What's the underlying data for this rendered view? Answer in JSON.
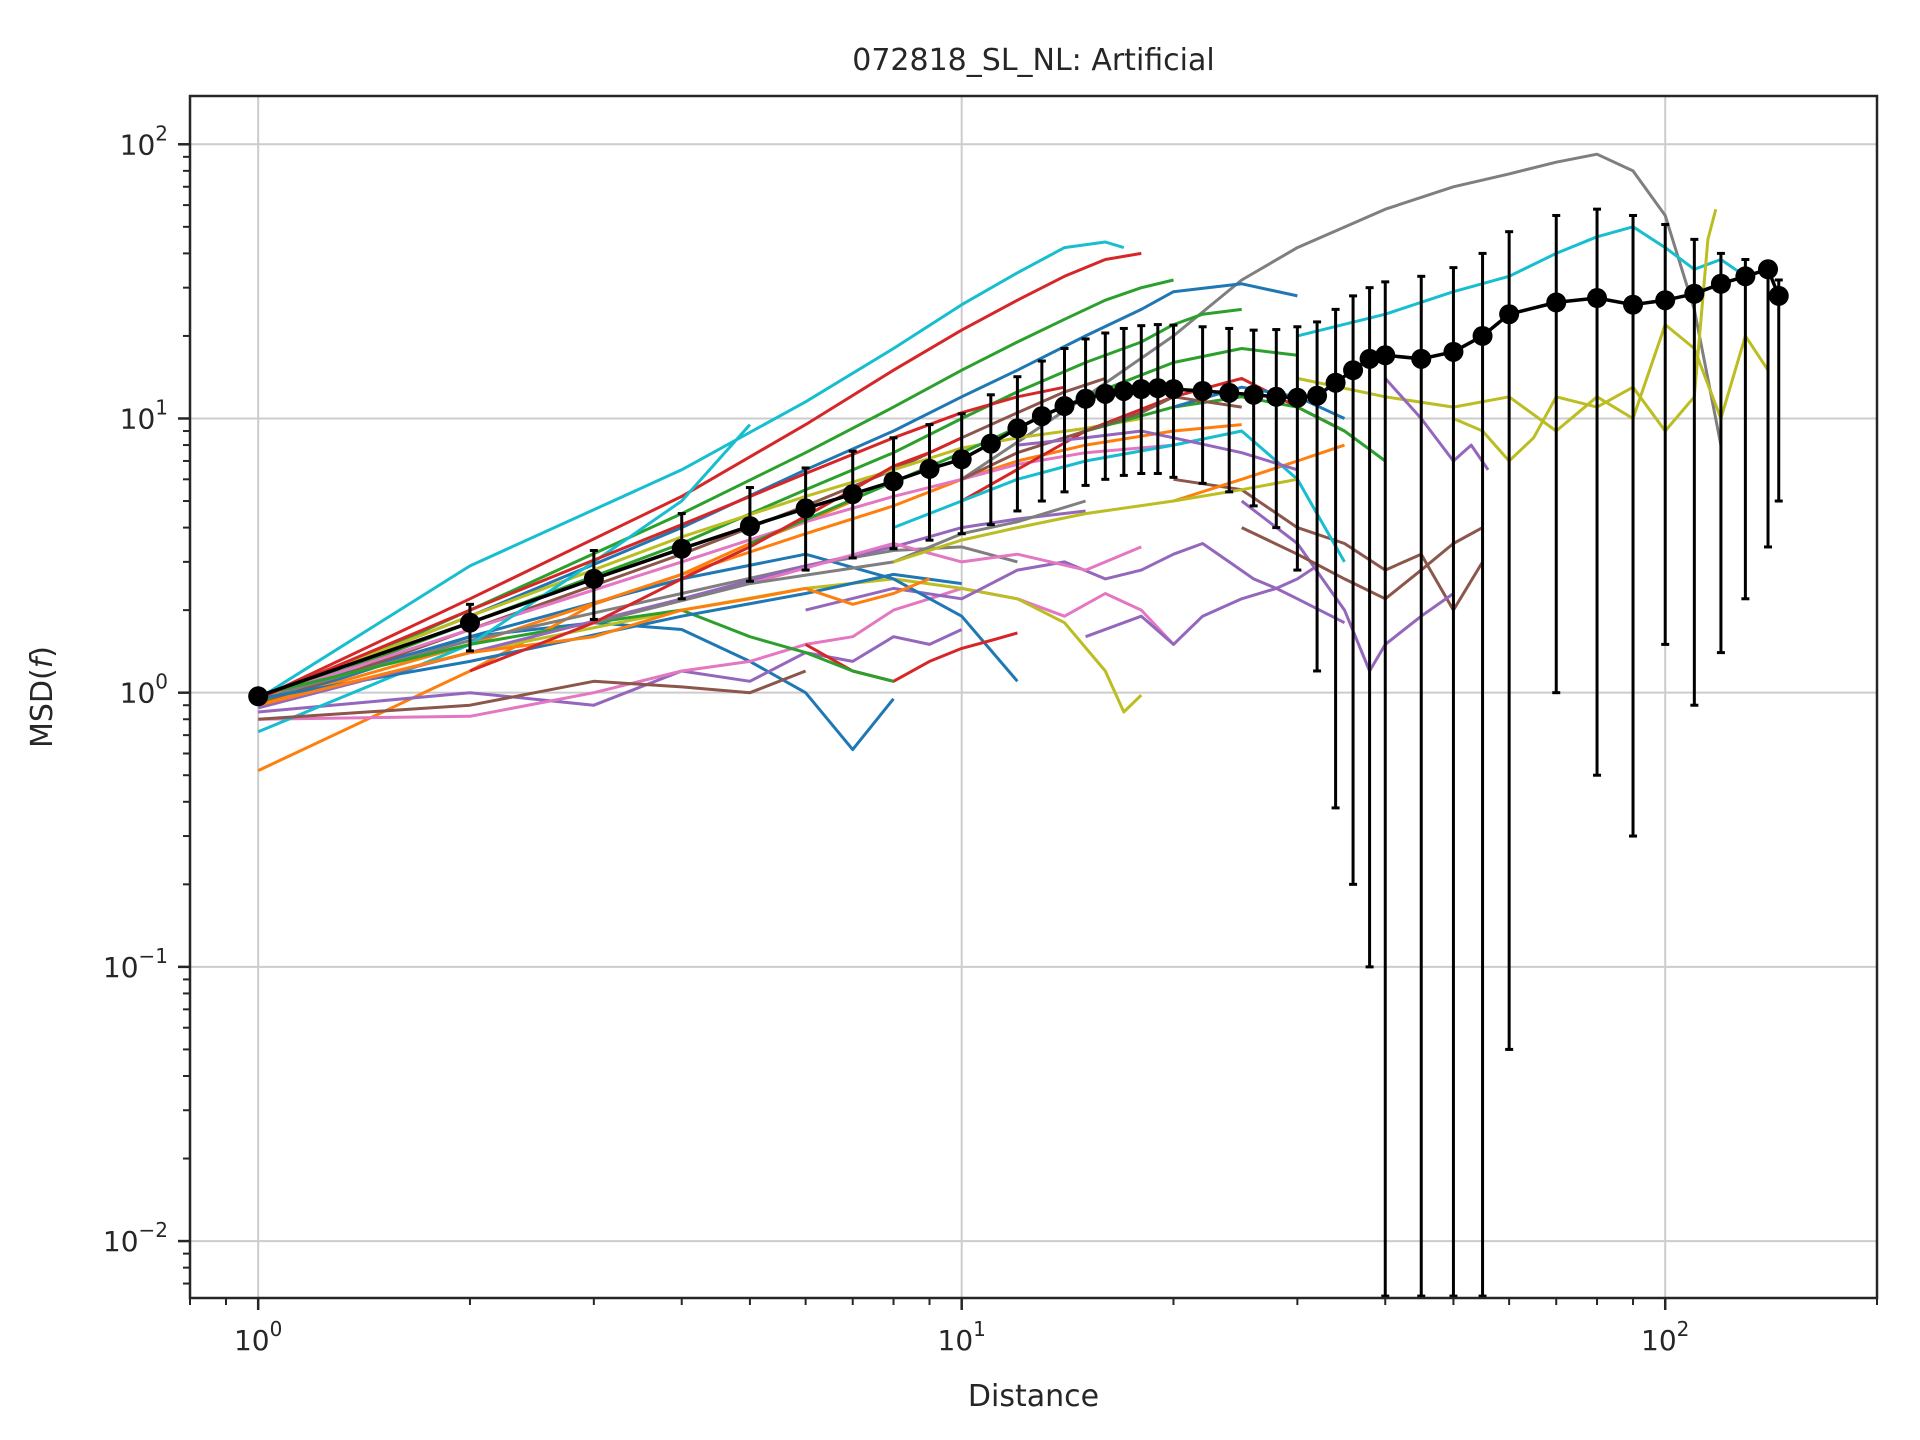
{
  "chart_data": {
    "type": "line",
    "title": "072818_SL_NL: Artificial",
    "xlabel": "Distance",
    "ylabel": "MSD(f)",
    "xscale": "log",
    "yscale": "log",
    "xlim": [
      0.8,
      200
    ],
    "ylim": [
      0.0062,
      150
    ],
    "grid": true,
    "x_ticks": [
      {
        "base": "10",
        "exp": "0",
        "value": 1
      },
      {
        "base": "10",
        "exp": "1",
        "value": 10
      },
      {
        "base": "10",
        "exp": "2",
        "value": 100
      }
    ],
    "y_ticks": [
      {
        "base": "10",
        "exp": "−2",
        "value": 0.01
      },
      {
        "base": "10",
        "exp": "−1",
        "value": 0.1
      },
      {
        "base": "10",
        "exp": "0",
        "value": 1
      },
      {
        "base": "10",
        "exp": "1",
        "value": 10
      },
      {
        "base": "10",
        "exp": "2",
        "value": 100
      }
    ],
    "palette": [
      "#1f77b4",
      "#ff7f0e",
      "#2ca02c",
      "#d62728",
      "#9467bd",
      "#8c564b",
      "#e377c2",
      "#7f7f7f",
      "#bcbd22",
      "#17becf"
    ],
    "mean_series": {
      "color": "#000000",
      "x": [
        1,
        2,
        3,
        4,
        5,
        6,
        7,
        8,
        9,
        10,
        11,
        12,
        13,
        14,
        15,
        16,
        17,
        18,
        19,
        20,
        22,
        24,
        26,
        28,
        30,
        32,
        34,
        36,
        38,
        40,
        45,
        50,
        55,
        60,
        70,
        80,
        90,
        100,
        110,
        120,
        130,
        140,
        145
      ],
      "y": [
        0.97,
        1.8,
        2.6,
        3.35,
        4.05,
        4.7,
        5.3,
        5.9,
        6.55,
        7.1,
        8.1,
        9.2,
        10.2,
        11.1,
        11.8,
        12.3,
        12.6,
        12.8,
        12.9,
        12.8,
        12.6,
        12.4,
        12.2,
        12.0,
        11.9,
        12.1,
        13.5,
        15.0,
        16.5,
        17.0,
        16.5,
        17.5,
        20.0,
        24.0,
        26.5,
        27.5,
        26.0,
        27.0,
        28.5,
        31.0,
        33.0,
        35.0,
        28.0
      ],
      "err_low": [
        0.95,
        1.42,
        1.85,
        2.2,
        2.55,
        2.8,
        3.1,
        3.35,
        3.6,
        3.8,
        4.1,
        4.6,
        5.0,
        5.4,
        5.7,
        6.0,
        6.2,
        6.3,
        6.3,
        6.1,
        5.8,
        5.4,
        4.8,
        4.0,
        2.8,
        1.2,
        0.38,
        0.2,
        0.1,
        0.0063,
        0.0063,
        0.0063,
        0.0063,
        0.05,
        1.0,
        0.5,
        0.3,
        1.5,
        0.9,
        1.4,
        2.2,
        3.4,
        5.0
      ],
      "err_high": [
        1.0,
        2.1,
        3.3,
        4.5,
        5.6,
        6.6,
        7.6,
        8.5,
        9.5,
        10.4,
        12.2,
        14.2,
        16.2,
        18.0,
        19.5,
        20.5,
        21.3,
        21.8,
        22.0,
        21.9,
        21.6,
        21.3,
        21.0,
        21.1,
        21.6,
        22.5,
        25.0,
        28.0,
        30.0,
        31.5,
        33.0,
        35.5,
        40.0,
        48.0,
        55.0,
        58.0,
        55.0,
        51.0,
        45.0,
        40.0,
        38.0,
        37.0,
        32.0
      ]
    },
    "series": [
      {
        "color": "#17becf",
        "x": [
          1,
          2,
          4,
          6,
          8,
          10,
          12,
          14,
          16,
          17
        ],
        "y": [
          0.95,
          2.9,
          6.5,
          11.5,
          18.0,
          26.0,
          34.0,
          42.0,
          44.0,
          42.0
        ]
      },
      {
        "color": "#d62728",
        "x": [
          1,
          2,
          4,
          6,
          8,
          10,
          12,
          14,
          16,
          18
        ],
        "y": [
          0.95,
          2.2,
          5.2,
          9.5,
          15.0,
          21.0,
          27.0,
          33.0,
          38.0,
          40.0
        ]
      },
      {
        "color": "#2ca02c",
        "x": [
          1,
          2,
          4,
          6,
          8,
          10,
          12,
          14,
          16,
          18,
          20
        ],
        "y": [
          0.9,
          2.0,
          4.5,
          7.5,
          11.0,
          15.0,
          19.0,
          23.0,
          27.0,
          30.0,
          32.0
        ]
      },
      {
        "color": "#7f7f7f",
        "x": [
          10,
          15,
          20,
          25,
          30,
          40,
          50,
          60,
          70,
          80,
          90,
          100,
          110,
          120
        ],
        "y": [
          6.0,
          12.0,
          20.0,
          32.0,
          42.0,
          58.0,
          70.0,
          78.0,
          86.0,
          92.0,
          80.0,
          55.0,
          25.0,
          8.0
        ]
      },
      {
        "color": "#17becf",
        "x": [
          30,
          40,
          50,
          60,
          70,
          80,
          90,
          100,
          110,
          120,
          130
        ],
        "y": [
          20.0,
          24.0,
          29.0,
          33.0,
          40.0,
          46.0,
          50.0,
          42.0,
          35.0,
          38.0,
          33.0
        ]
      },
      {
        "color": "#bcbd22",
        "x": [
          30,
          40,
          50,
          60,
          70,
          80,
          90,
          100,
          110,
          120,
          130,
          140
        ],
        "y": [
          14.0,
          12.0,
          11.0,
          12.0,
          9.0,
          12.0,
          10.0,
          22.0,
          18.0,
          10.0,
          20.0,
          15.0
        ]
      },
      {
        "color": "#bcbd22",
        "x": [
          50,
          55,
          60,
          65,
          70,
          80,
          90,
          100,
          110,
          115,
          118
        ],
        "y": [
          10.0,
          9.0,
          7.0,
          8.5,
          12.0,
          11.0,
          13.0,
          9.0,
          12.0,
          45.0,
          58.0
        ]
      },
      {
        "color": "#1f77b4",
        "x": [
          1,
          2,
          3,
          4,
          5,
          6,
          7,
          8
        ],
        "y": [
          0.9,
          1.6,
          1.8,
          1.7,
          1.3,
          1.0,
          0.62,
          0.95
        ]
      },
      {
        "color": "#ff7f0e",
        "x": [
          1,
          2,
          3,
          4,
          5,
          6,
          7
        ],
        "y": [
          0.52,
          1.2,
          2.1,
          2.7,
          3.5,
          4.2,
          5.0
        ]
      },
      {
        "color": "#9467bd",
        "x": [
          1,
          2,
          3,
          4,
          5,
          6,
          7,
          8,
          9,
          10
        ],
        "y": [
          0.85,
          1.0,
          0.9,
          1.2,
          1.1,
          1.4,
          1.3,
          1.6,
          1.5,
          1.7
        ]
      },
      {
        "color": "#e377c2",
        "x": [
          1,
          2,
          3,
          4,
          5,
          6,
          7,
          8,
          9,
          10,
          12,
          14,
          16,
          18,
          20
        ],
        "y": [
          0.8,
          0.82,
          1.0,
          1.2,
          1.3,
          1.5,
          1.6,
          2.0,
          2.2,
          2.4,
          2.2,
          1.9,
          2.3,
          2.0,
          1.5
        ]
      },
      {
        "color": "#bcbd22",
        "x": [
          1,
          2,
          4,
          6,
          8,
          10,
          12,
          14,
          16,
          17,
          18
        ],
        "y": [
          0.9,
          1.4,
          2.0,
          2.4,
          2.6,
          2.4,
          2.2,
          1.8,
          1.2,
          0.85,
          0.98
        ]
      },
      {
        "color": "#9467bd",
        "x": [
          6,
          8,
          10,
          12,
          14,
          16,
          18,
          20,
          22,
          24,
          26,
          28,
          30,
          32
        ],
        "y": [
          2.0,
          2.4,
          2.2,
          2.8,
          3.0,
          2.6,
          2.8,
          3.2,
          3.5,
          3.0,
          2.6,
          2.4,
          2.6,
          2.9
        ]
      },
      {
        "color": "#8c564b",
        "x": [
          20,
          25,
          30,
          35,
          40,
          45,
          50,
          55
        ],
        "y": [
          6.0,
          5.5,
          4.0,
          3.5,
          2.8,
          3.2,
          2.0,
          3.0
        ]
      },
      {
        "color": "#9467bd",
        "x": [
          25,
          30,
          35,
          38,
          40,
          45,
          50
        ],
        "y": [
          5.0,
          3.5,
          2.0,
          1.2,
          1.5,
          1.9,
          2.3
        ]
      },
      {
        "color": "#9467bd",
        "x": [
          40,
          45,
          50,
          53,
          56
        ],
        "y": [
          14.0,
          10.0,
          7.0,
          8.0,
          6.5
        ]
      },
      {
        "color": "#1f77b4",
        "x": [
          1,
          2,
          4,
          6,
          8,
          10,
          12
        ],
        "y": [
          0.95,
          1.6,
          2.6,
          3.2,
          2.6,
          1.9,
          1.1
        ]
      },
      {
        "color": "#d62728",
        "x": [
          6,
          7,
          8,
          9,
          10,
          11,
          12
        ],
        "y": [
          1.5,
          1.2,
          1.1,
          1.3,
          1.45,
          1.55,
          1.65
        ]
      },
      {
        "color": "#1f77b4",
        "x": [
          1,
          2,
          4,
          6,
          8,
          10,
          12,
          15,
          18,
          20,
          25,
          30
        ],
        "y": [
          0.95,
          1.9,
          4.0,
          6.5,
          9.0,
          12.0,
          15.0,
          20.0,
          25.0,
          29.0,
          31.0,
          28.0
        ]
      },
      {
        "color": "#2ca02c",
        "x": [
          1,
          2,
          4,
          6,
          8,
          10,
          12,
          15,
          18,
          20,
          22,
          25
        ],
        "y": [
          0.92,
          1.8,
          3.5,
          5.5,
          7.5,
          10.0,
          12.5,
          16.0,
          19.0,
          22.0,
          24.0,
          25.0
        ]
      },
      {
        "color": "#8c564b",
        "x": [
          1,
          2,
          4,
          6,
          8,
          10,
          12,
          14,
          16
        ],
        "y": [
          0.9,
          1.7,
          3.2,
          4.8,
          6.5,
          8.5,
          10.5,
          12.5,
          14.0
        ]
      },
      {
        "color": "#ff7f0e",
        "x": [
          1,
          2,
          4,
          6,
          8,
          10,
          12,
          15,
          20,
          25
        ],
        "y": [
          0.9,
          1.5,
          2.7,
          3.8,
          4.8,
          6.0,
          7.0,
          8.0,
          9.0,
          9.5
        ]
      },
      {
        "color": "#e377c2",
        "x": [
          1,
          2,
          4,
          6,
          8,
          10,
          12,
          15,
          20
        ],
        "y": [
          0.95,
          1.7,
          3.0,
          4.2,
          5.2,
          6.0,
          6.8,
          7.5,
          8.0
        ]
      },
      {
        "color": "#7f7f7f",
        "x": [
          1,
          2,
          4,
          6,
          8,
          10,
          12
        ],
        "y": [
          0.95,
          1.55,
          2.3,
          2.9,
          3.3,
          3.4,
          3.0
        ]
      },
      {
        "color": "#bcbd22",
        "x": [
          1,
          2,
          4,
          6,
          8,
          10,
          12,
          15,
          18
        ],
        "y": [
          0.95,
          1.9,
          3.7,
          5.2,
          6.5,
          7.8,
          8.5,
          9.2,
          10.0
        ]
      },
      {
        "color": "#17becf",
        "x": [
          1,
          2,
          3,
          4,
          5
        ],
        "y": [
          0.72,
          1.5,
          3.0,
          5.0,
          9.5
        ]
      },
      {
        "color": "#d62728",
        "x": [
          10,
          15,
          20,
          25,
          30,
          35
        ],
        "y": [
          5.0,
          9.0,
          12.0,
          14.0,
          11.0,
          9.0
        ]
      },
      {
        "color": "#2ca02c",
        "x": [
          1,
          2,
          3,
          4,
          5,
          6,
          7,
          8
        ],
        "y": [
          0.98,
          1.5,
          1.8,
          2.0,
          1.6,
          1.4,
          1.2,
          1.1
        ]
      },
      {
        "color": "#9467bd",
        "x": [
          15,
          18,
          20,
          22,
          25,
          28,
          30,
          35
        ],
        "y": [
          1.6,
          1.9,
          1.5,
          1.9,
          2.2,
          2.4,
          2.2,
          1.8
        ]
      },
      {
        "color": "#8c564b",
        "x": [
          1,
          2,
          3,
          4,
          5,
          6
        ],
        "y": [
          0.8,
          0.9,
          1.1,
          1.05,
          1.0,
          1.2
        ]
      },
      {
        "color": "#ff7f0e",
        "x": [
          20,
          25,
          30,
          35
        ],
        "y": [
          5.0,
          6.0,
          7.0,
          8.0
        ]
      },
      {
        "color": "#1f77b4",
        "x": [
          1,
          2,
          4,
          6,
          8,
          10
        ],
        "y": [
          0.95,
          1.3,
          1.9,
          2.3,
          2.7,
          2.5
        ]
      },
      {
        "color": "#2ca02c",
        "x": [
          5,
          10,
          15,
          20,
          25,
          30
        ],
        "y": [
          3.5,
          7.5,
          12.0,
          16.0,
          18.0,
          17.0
        ]
      },
      {
        "color": "#d62728",
        "x": [
          1,
          2,
          4,
          6,
          8,
          10,
          12,
          14
        ],
        "y": [
          0.95,
          2.0,
          4.1,
          6.3,
          8.5,
          10.5,
          12.0,
          13.0
        ]
      },
      {
        "color": "#17becf",
        "x": [
          8,
          10,
          12,
          15,
          20,
          25,
          30,
          35
        ],
        "y": [
          4.0,
          5.0,
          6.0,
          7.0,
          8.0,
          9.0,
          6.0,
          3.0
        ]
      },
      {
        "color": "#8c564b",
        "x": [
          25,
          30,
          35,
          40,
          45,
          50,
          55
        ],
        "y": [
          4.0,
          3.2,
          2.6,
          2.2,
          2.8,
          3.5,
          4.0
        ]
      },
      {
        "color": "#9467bd",
        "x": [
          1,
          2,
          4,
          6,
          8,
          10,
          12,
          15
        ],
        "y": [
          0.88,
          1.4,
          2.2,
          2.9,
          3.4,
          4.0,
          4.3,
          4.6
        ]
      },
      {
        "color": "#e377c2",
        "x": [
          5,
          8,
          10,
          12,
          15,
          18
        ],
        "y": [
          2.5,
          3.5,
          3.0,
          3.2,
          2.8,
          3.4
        ]
      },
      {
        "color": "#7f7f7f",
        "x": [
          3,
          5,
          8,
          10,
          12,
          15
        ],
        "y": [
          1.8,
          2.5,
          3.0,
          3.8,
          4.2,
          5.0
        ]
      },
      {
        "color": "#ff7f0e",
        "x": [
          1,
          2,
          3,
          4,
          5,
          6,
          7,
          8,
          9
        ],
        "y": [
          0.9,
          1.4,
          1.6,
          2.0,
          2.2,
          2.4,
          2.1,
          2.3,
          2.6
        ]
      },
      {
        "color": "#2ca02c",
        "x": [
          15,
          20,
          25,
          30,
          35,
          40
        ],
        "y": [
          9.0,
          11.0,
          12.0,
          11.0,
          9.0,
          7.0
        ]
      },
      {
        "color": "#bcbd22",
        "x": [
          8,
          10,
          12,
          15,
          20,
          25,
          30
        ],
        "y": [
          3.0,
          3.6,
          4.0,
          4.5,
          5.0,
          5.5,
          6.0
        ]
      },
      {
        "color": "#1f77b4",
        "x": [
          20,
          25,
          30,
          35
        ],
        "y": [
          11.0,
          13.0,
          12.0,
          10.0
        ]
      },
      {
        "color": "#d62728",
        "x": [
          2,
          3,
          4,
          5,
          6,
          7,
          8,
          9,
          10
        ],
        "y": [
          1.2,
          1.8,
          2.6,
          3.4,
          4.4,
          5.5,
          6.7,
          7.5,
          8.5
        ]
      },
      {
        "color": "#8c564b",
        "x": [
          10,
          12,
          15,
          18,
          20,
          25
        ],
        "y": [
          6.0,
          7.5,
          9.0,
          10.5,
          12.0,
          11.0
        ]
      },
      {
        "color": "#9467bd",
        "x": [
          12,
          15,
          18,
          20,
          25,
          30
        ],
        "y": [
          8.0,
          8.5,
          9.0,
          8.5,
          7.5,
          6.5
        ]
      }
    ]
  }
}
